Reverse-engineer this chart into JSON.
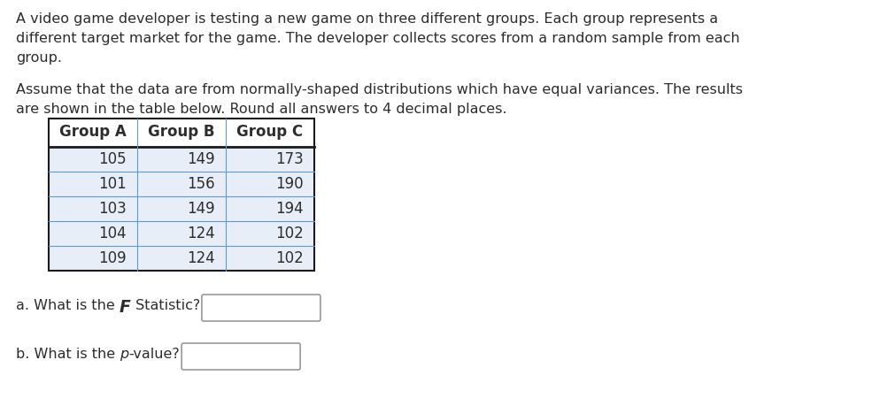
{
  "title_line1": "A video game developer is testing a new game on three different groups. Each group represents a",
  "title_line2": "different target market for the game. The developer collects scores from a random sample from each",
  "title_line3": "group.",
  "para2_line1": "Assume that the data are from normally-shaped distributions which have equal variances. The results",
  "para2_line2": "are shown in the table below. Round all answers to 4 decimal places.",
  "col_headers": [
    "Group A",
    "Group B",
    "Group C"
  ],
  "data_rows": [
    [
      105,
      149,
      173
    ],
    [
      101,
      156,
      190
    ],
    [
      103,
      149,
      194
    ],
    [
      104,
      124,
      102
    ],
    [
      109,
      124,
      102
    ]
  ],
  "text_color": "#2d2d2d",
  "table_header_bg": "#ffffff",
  "table_row_bg": "#e8eef8",
  "table_border_color": "#1a1a1a",
  "table_inner_border_color": "#5b9bd5",
  "background_color": "#ffffff",
  "font_size_body": 11.5,
  "font_size_table": 12,
  "box_border_color": "#999999"
}
